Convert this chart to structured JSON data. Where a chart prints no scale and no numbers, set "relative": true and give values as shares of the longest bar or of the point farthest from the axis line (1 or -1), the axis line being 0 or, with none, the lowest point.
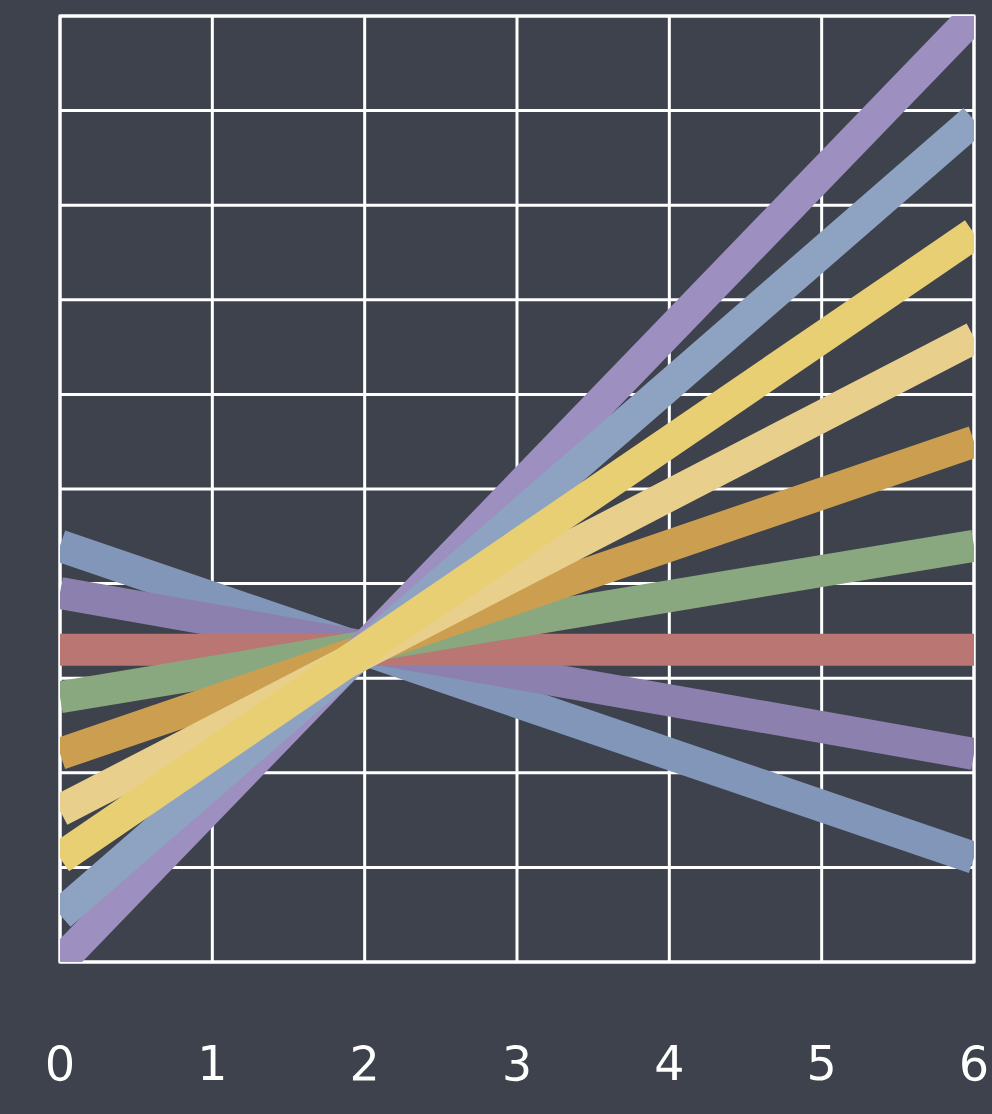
{
  "chart_data": {
    "type": "line",
    "relative": true,
    "x": [
      0,
      6
    ],
    "xlim": [
      0,
      6
    ],
    "xticks": [
      0,
      1,
      2,
      3,
      4,
      5,
      6
    ],
    "grid": true,
    "series": [
      {
        "color": "#8196b9",
        "values": [
          0.44,
          0.11
        ]
      },
      {
        "color": "#8c80ae",
        "values": [
          0.39,
          0.22
        ]
      },
      {
        "color": "#b97672",
        "values": [
          0.33,
          0.33
        ]
      },
      {
        "color": "#8aa880",
        "values": [
          0.28,
          0.44
        ]
      },
      {
        "color": "#cc9e4f",
        "values": [
          0.22,
          0.55
        ]
      },
      {
        "color": "#9d8fbf",
        "values": [
          0,
          1
        ]
      },
      {
        "color": "#8ea3c2",
        "values": [
          0.05,
          0.89
        ]
      },
      {
        "color": "#e8d08c",
        "values": [
          0.16,
          0.66
        ]
      },
      {
        "color": "#e9cf74",
        "values": [
          0.11,
          0.77
        ]
      }
    ]
  }
}
